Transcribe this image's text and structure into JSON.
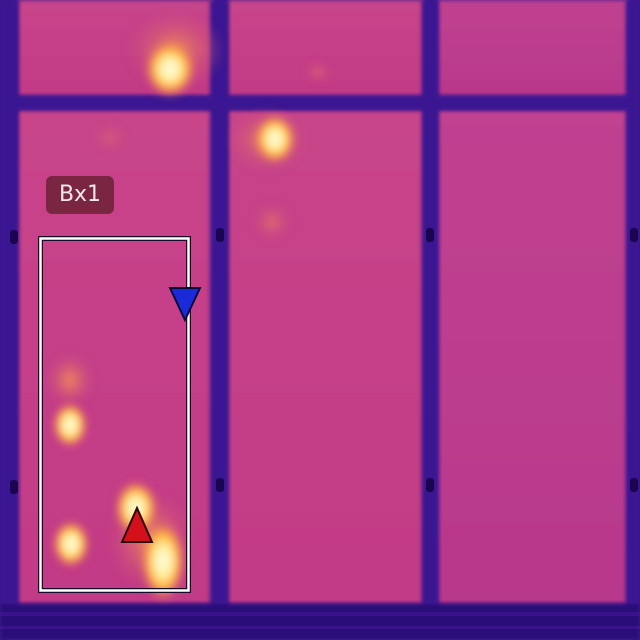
{
  "measurement_box": {
    "label": "Bx1",
    "max_marker": "red-triangle-up",
    "min_marker": "blue-triangle-down",
    "colors": {
      "outline": "#ffffff",
      "label_background": "#7a2642",
      "max_marker": "#d4101a",
      "min_marker": "#1a2ad8"
    }
  },
  "palette": {
    "panel": "#c43e8c",
    "frame": "#4b1aa0",
    "hot": "#ffef9a"
  }
}
